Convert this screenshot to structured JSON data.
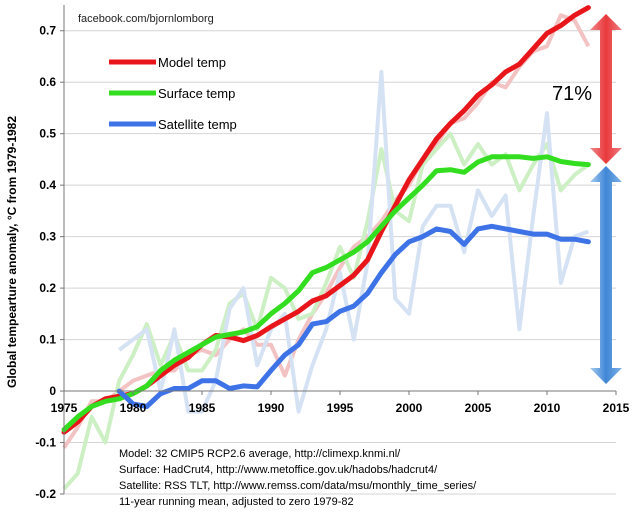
{
  "credit": "facebook.com/bjornlomborg",
  "chart_data": {
    "type": "line",
    "ylabel": "Global tempearture anomaly, °C from 1979-1982",
    "xlabel": "",
    "xlim": [
      1975,
      2015
    ],
    "ylim": [
      -0.2,
      0.75
    ],
    "x_ticks": [
      "1975",
      "1980",
      "1985",
      "1990",
      "1995",
      "2000",
      "2005",
      "2010",
      "2015"
    ],
    "y_ticks": [
      "-0.2",
      "-0.1",
      "0",
      "0.1",
      "0.2",
      "0.3",
      "0.4",
      "0.5",
      "0.6",
      "0.7"
    ],
    "grid": "horizontal",
    "legend_position": "top-left",
    "series": [
      {
        "name": "Model temp",
        "color": "#e8161b",
        "role": "running mean",
        "x": [
          1975,
          1976,
          1977,
          1978,
          1979,
          1980,
          1981,
          1982,
          1983,
          1984,
          1985,
          1986,
          1987,
          1988,
          1989,
          1990,
          1991,
          1992,
          1993,
          1994,
          1995,
          1996,
          1997,
          1998,
          1999,
          2000,
          2001,
          2002,
          2003,
          2004,
          2005,
          2006,
          2007,
          2008,
          2009,
          2010,
          2011,
          2012,
          2013
        ],
        "y": [
          -0.08,
          -0.06,
          -0.03,
          -0.015,
          -0.01,
          -0.005,
          0.01,
          0.03,
          0.05,
          0.065,
          0.09,
          0.108,
          0.105,
          0.098,
          0.108,
          0.125,
          0.14,
          0.155,
          0.175,
          0.185,
          0.205,
          0.225,
          0.255,
          0.31,
          0.36,
          0.41,
          0.45,
          0.49,
          0.52,
          0.545,
          0.575,
          0.595,
          0.62,
          0.635,
          0.665,
          0.695,
          0.71,
          0.73,
          0.745
        ]
      },
      {
        "name": "Surface temp",
        "color": "#33dd1f",
        "role": "running mean",
        "x": [
          1975,
          1976,
          1977,
          1978,
          1979,
          1980,
          1981,
          1982,
          1983,
          1984,
          1985,
          1986,
          1987,
          1988,
          1989,
          1990,
          1991,
          1992,
          1993,
          1994,
          1995,
          1996,
          1997,
          1998,
          1999,
          2000,
          2001,
          2002,
          2003,
          2004,
          2005,
          2006,
          2007,
          2008,
          2009,
          2010,
          2011,
          2012,
          2013
        ],
        "y": [
          -0.075,
          -0.05,
          -0.03,
          -0.02,
          -0.015,
          -0.005,
          0.01,
          0.04,
          0.06,
          0.075,
          0.09,
          0.105,
          0.11,
          0.115,
          0.125,
          0.15,
          0.17,
          0.195,
          0.23,
          0.24,
          0.255,
          0.27,
          0.29,
          0.32,
          0.35,
          0.375,
          0.4,
          0.428,
          0.43,
          0.425,
          0.445,
          0.455,
          0.455,
          0.455,
          0.452,
          0.455,
          0.446,
          0.442,
          0.44
        ]
      },
      {
        "name": "Satellite temp",
        "color": "#3e73e8",
        "role": "running mean",
        "x": [
          1979,
          1980,
          1981,
          1982,
          1983,
          1984,
          1985,
          1986,
          1987,
          1988,
          1989,
          1990,
          1991,
          1992,
          1993,
          1994,
          1995,
          1996,
          1997,
          1998,
          1999,
          2000,
          2001,
          2002,
          2003,
          2004,
          2005,
          2006,
          2007,
          2008,
          2009,
          2010,
          2011,
          2012,
          2013
        ],
        "y": [
          0.0,
          -0.025,
          -0.03,
          -0.005,
          0.005,
          0.005,
          0.02,
          0.02,
          0.005,
          0.01,
          0.008,
          0.04,
          0.07,
          0.09,
          0.13,
          0.135,
          0.155,
          0.165,
          0.19,
          0.23,
          0.265,
          0.29,
          0.3,
          0.315,
          0.31,
          0.285,
          0.315,
          0.32,
          0.315,
          0.31,
          0.305,
          0.305,
          0.295,
          0.295,
          0.29
        ]
      },
      {
        "name": "",
        "color": "#f3c2c2",
        "role": "annual",
        "x": [
          1975,
          1976,
          1977,
          1978,
          1979,
          1980,
          1981,
          1982,
          1983,
          1984,
          1985,
          1986,
          1987,
          1988,
          1989,
          1990,
          1991,
          1992,
          1993,
          1994,
          1995,
          1996,
          1997,
          1998,
          1999,
          2000,
          2001,
          2002,
          2003,
          2004,
          2005,
          2006,
          2007,
          2008,
          2009,
          2010,
          2011,
          2012,
          2013
        ],
        "y": [
          -0.11,
          -0.07,
          -0.02,
          -0.02,
          0.0,
          0.02,
          0.03,
          0.04,
          0.04,
          0.07,
          0.08,
          0.07,
          0.1,
          0.12,
          0.09,
          0.09,
          0.03,
          0.1,
          0.15,
          0.19,
          0.24,
          0.28,
          0.3,
          0.33,
          0.37,
          0.4,
          0.45,
          0.48,
          0.52,
          0.53,
          0.56,
          0.6,
          0.59,
          0.63,
          0.66,
          0.67,
          0.73,
          0.72,
          0.67
        ]
      },
      {
        "name": "",
        "color": "#cdefc4",
        "role": "annual",
        "x": [
          1975,
          1976,
          1977,
          1978,
          1979,
          1980,
          1981,
          1982,
          1983,
          1984,
          1985,
          1986,
          1987,
          1988,
          1989,
          1990,
          1991,
          1992,
          1993,
          1994,
          1995,
          1996,
          1997,
          1998,
          1999,
          2000,
          2001,
          2002,
          2003,
          2004,
          2005,
          2006,
          2007,
          2008,
          2009,
          2010,
          2011,
          2012,
          2013
        ],
        "y": [
          -0.19,
          -0.16,
          -0.05,
          -0.1,
          0.02,
          0.07,
          0.13,
          0.05,
          0.11,
          0.04,
          0.04,
          0.08,
          0.17,
          0.19,
          0.12,
          0.22,
          0.2,
          0.14,
          0.15,
          0.21,
          0.28,
          0.22,
          0.33,
          0.47,
          0.35,
          0.33,
          0.44,
          0.47,
          0.5,
          0.44,
          0.48,
          0.44,
          0.46,
          0.39,
          0.44,
          0.48,
          0.39,
          0.42,
          0.44
        ]
      },
      {
        "name": "",
        "color": "#d5e2f3",
        "role": "annual",
        "x": [
          1979,
          1980,
          1981,
          1982,
          1983,
          1984,
          1985,
          1986,
          1987,
          1988,
          1989,
          1990,
          1991,
          1992,
          1993,
          1994,
          1995,
          1996,
          1997,
          1998,
          1999,
          2000,
          2001,
          2002,
          2003,
          2004,
          2005,
          2006,
          2007,
          2008,
          2009,
          2010,
          2011,
          2012,
          2013
        ],
        "y": [
          0.08,
          0.1,
          0.12,
          0.0,
          0.12,
          -0.04,
          -0.04,
          0.02,
          0.16,
          0.2,
          0.05,
          0.12,
          0.15,
          -0.04,
          0.05,
          0.12,
          0.23,
          0.1,
          0.25,
          0.62,
          0.18,
          0.15,
          0.32,
          0.36,
          0.36,
          0.27,
          0.39,
          0.34,
          0.38,
          0.12,
          0.34,
          0.54,
          0.21,
          0.3,
          0.31
        ]
      }
    ],
    "annotations": {
      "gap_label": "71%",
      "sources": [
        "Model: 32 CMIP5 RCP2.6 average, http://climexp.knmi.nl/",
        "Surface: HadCrut4, http://www.metoffice.gov.uk/hadobs/hadcrut4/",
        "Satellite: RSS TLT, http://www.remss.com/data/msu/monthly_time_series/",
        "11-year running mean, adjusted to zero 1979-82"
      ]
    },
    "arrow_colors": {
      "red": "#e8393c",
      "blue": "#3f86d6"
    }
  }
}
